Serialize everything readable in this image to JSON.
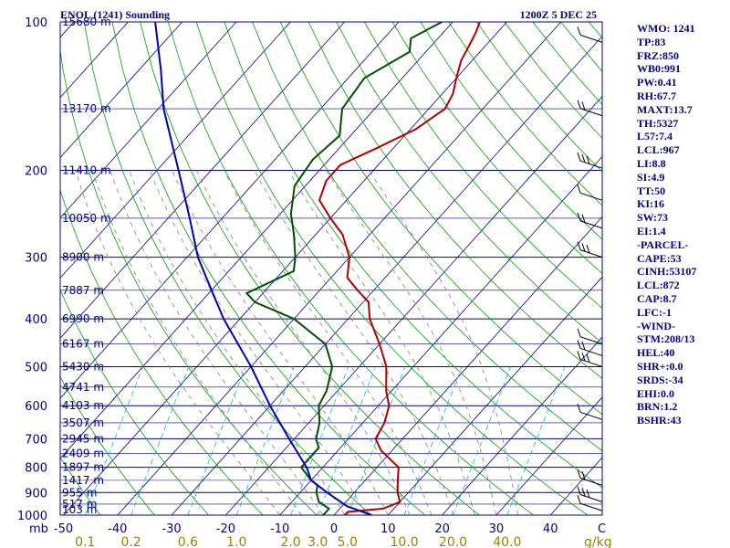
{
  "chart_data": {
    "type": "line",
    "title": "ENOL (1241) Sounding",
    "valid_time": "1200Z  5 DEC 25",
    "y_label": "mb",
    "x_label": "C",
    "mixing_unit": "g/kg",
    "pressure_levels": [
      {
        "p": 100,
        "label": "100"
      },
      {
        "p": 200,
        "label": "200"
      },
      {
        "p": 300,
        "label": "300"
      },
      {
        "p": 400,
        "label": "400"
      },
      {
        "p": 500,
        "label": "500"
      },
      {
        "p": 600,
        "label": "600"
      },
      {
        "p": 700,
        "label": "700"
      },
      {
        "p": 800,
        "label": "800"
      },
      {
        "p": 900,
        "label": "900"
      },
      {
        "p": 1000,
        "label": "1000"
      }
    ],
    "temp_ticks": [
      {
        "t": -50,
        "label": "-50"
      },
      {
        "t": -40,
        "label": "-40"
      },
      {
        "t": -30,
        "label": "-30"
      },
      {
        "t": -20,
        "label": "-20"
      },
      {
        "t": -10,
        "label": "-10"
      },
      {
        "t": 0,
        "label": "0"
      },
      {
        "t": 10,
        "label": "10"
      },
      {
        "t": 20,
        "label": "20"
      },
      {
        "t": 30,
        "label": "30"
      },
      {
        "t": 40,
        "label": "40"
      }
    ],
    "mixing_ratios": [
      {
        "t": -46,
        "label": "0.1"
      },
      {
        "t": -37.5,
        "label": "0.2"
      },
      {
        "t": -27,
        "label": "0.6"
      },
      {
        "t": -18,
        "label": "1.0"
      },
      {
        "t": -8,
        "label": "2.0"
      },
      {
        "t": -3,
        "label": "3.0"
      },
      {
        "t": 2.5,
        "label": "5.0"
      },
      {
        "t": 13,
        "label": "10.0"
      },
      {
        "t": 22,
        "label": "20.0"
      },
      {
        "t": 32,
        "label": "40.0"
      }
    ],
    "heights": [
      {
        "p": 100,
        "label": "15680 m"
      },
      {
        "p": 150,
        "label": "13170 m"
      },
      {
        "p": 200,
        "label": "11410 m"
      },
      {
        "p": 250,
        "label": "10050 m"
      },
      {
        "p": 300,
        "label": "8900 m"
      },
      {
        "p": 350,
        "label": "7887 m"
      },
      {
        "p": 400,
        "label": "6990 m"
      },
      {
        "p": 450,
        "label": "6167 m"
      },
      {
        "p": 500,
        "label": "5430 m"
      },
      {
        "p": 550,
        "label": "4741 m"
      },
      {
        "p": 600,
        "label": "4103 m"
      },
      {
        "p": 650,
        "label": "3507 m"
      },
      {
        "p": 700,
        "label": "2945 m"
      },
      {
        "p": 750,
        "label": "2409 m"
      },
      {
        "p": 800,
        "label": "1897 m"
      },
      {
        "p": 850,
        "label": "1417 m"
      },
      {
        "p": 900,
        "label": "955 m"
      },
      {
        "p": 950,
        "label": "517 m"
      },
      {
        "p": 975,
        "label": "103 m"
      }
    ],
    "series": [
      {
        "name": "temperature",
        "color": "#b00000",
        "points": [
          [
            1000,
            2
          ],
          [
            985,
            2
          ],
          [
            970,
            8
          ],
          [
            940,
            10
          ],
          [
            900,
            8
          ],
          [
            850,
            6
          ],
          [
            800,
            4
          ],
          [
            740,
            -2
          ],
          [
            700,
            -5
          ],
          [
            650,
            -6
          ],
          [
            600,
            -8
          ],
          [
            560,
            -11
          ],
          [
            500,
            -15
          ],
          [
            450,
            -20
          ],
          [
            400,
            -26
          ],
          [
            370,
            -29
          ],
          [
            350,
            -33
          ],
          [
            330,
            -37
          ],
          [
            300,
            -40
          ],
          [
            270,
            -45
          ],
          [
            250,
            -50
          ],
          [
            230,
            -55
          ],
          [
            210,
            -57
          ],
          [
            195,
            -57
          ],
          [
            180,
            -53
          ],
          [
            165,
            -49
          ],
          [
            150,
            -47
          ],
          [
            140,
            -48
          ],
          [
            130,
            -50
          ],
          [
            120,
            -52
          ],
          [
            112,
            -53
          ],
          [
            105,
            -54
          ],
          [
            100,
            -55
          ]
        ]
      },
      {
        "name": "dewpoint",
        "color": "#005000",
        "points": [
          [
            1000,
            -2
          ],
          [
            970,
            -2
          ],
          [
            940,
            -5
          ],
          [
            900,
            -7
          ],
          [
            870,
            -8
          ],
          [
            850,
            -10
          ],
          [
            800,
            -14
          ],
          [
            770,
            -14
          ],
          [
            730,
            -14
          ],
          [
            700,
            -16
          ],
          [
            650,
            -18
          ],
          [
            600,
            -21
          ],
          [
            560,
            -22
          ],
          [
            500,
            -25
          ],
          [
            450,
            -30
          ],
          [
            400,
            -40
          ],
          [
            370,
            -50
          ],
          [
            355,
            -53
          ],
          [
            320,
            -48
          ],
          [
            300,
            -50
          ],
          [
            270,
            -54
          ],
          [
            245,
            -58
          ],
          [
            215,
            -62
          ],
          [
            190,
            -63
          ],
          [
            170,
            -62
          ],
          [
            150,
            -66
          ],
          [
            130,
            -67
          ],
          [
            115,
            -63
          ],
          [
            108,
            -65
          ],
          [
            100,
            -62
          ]
        ]
      },
      {
        "name": "parcel",
        "color": "#0000b0",
        "points": [
          [
            1000,
            7
          ],
          [
            960,
            1
          ],
          [
            900,
            -5
          ],
          [
            850,
            -10
          ],
          [
            800,
            -13
          ],
          [
            700,
            -21
          ],
          [
            600,
            -30
          ],
          [
            500,
            -40
          ],
          [
            400,
            -53
          ],
          [
            350,
            -60
          ],
          [
            300,
            -68
          ],
          [
            250,
            -76
          ],
          [
            200,
            -86
          ],
          [
            150,
            -99
          ],
          [
            125,
            -106
          ],
          [
            100,
            -115
          ]
        ]
      }
    ],
    "wind_barbs_mb": [
      110,
      155,
      198,
      230,
      262,
      300,
      450,
      475,
      500,
      640,
      870,
      940,
      980
    ]
  },
  "indices": [
    "WMO: 1241",
    "TP:83",
    "FRZ:850",
    "WB0:991",
    "PW:0.41",
    "RH:67.7",
    "MAXT:13.7",
    "TH:5327",
    "L57:7.4",
    "LCL:967",
    "LI:8.8",
    "SI:4.9",
    "TT:50",
    "KI:16",
    "SW:73",
    "EI:1.4",
    "-PARCEL-",
    "CAPE:53",
    "CINH:53107",
    "LCL:872",
    "CAP:8.7",
    "LFC:-1",
    "-WIND-",
    "STM:208/13",
    "HEL:40",
    "SHR+:0.0",
    "SRDS:-34",
    "EHI:0.0",
    "BRN:1.2",
    "BSHR:43"
  ],
  "colors": {
    "isobar": "#00008b",
    "isotherm": "#00008b",
    "dry_adiabat": "#00a000",
    "moist_adiabat": "#808080",
    "mixing": "#00bcd4"
  }
}
